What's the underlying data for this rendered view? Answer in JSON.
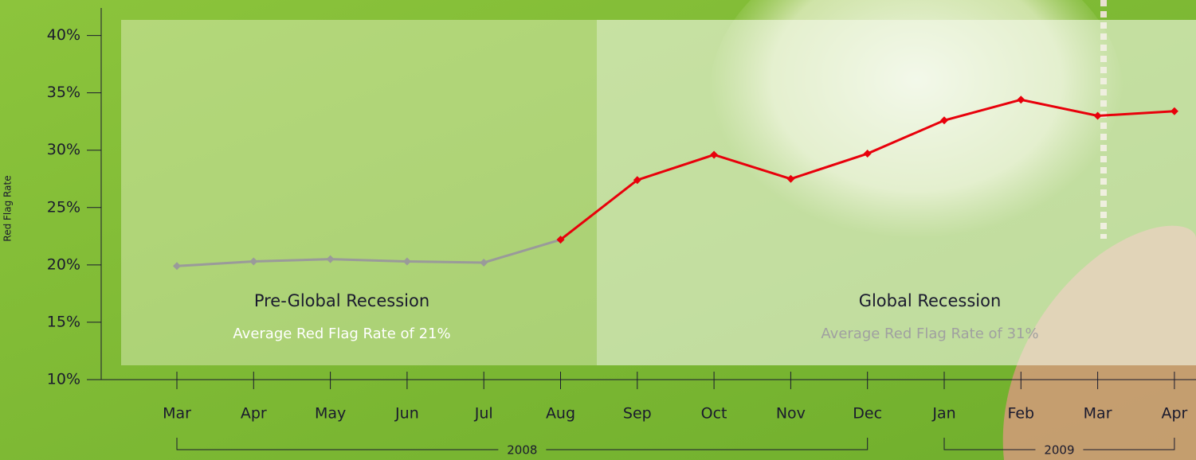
{
  "chart_data": {
    "type": "line",
    "y_label": "Red Flag Rate",
    "categories": [
      "Mar",
      "Apr",
      "May",
      "Jun",
      "Jul",
      "Aug",
      "Sep",
      "Oct",
      "Nov",
      "Dec",
      "Jan",
      "Feb",
      "Mar",
      "Apr"
    ],
    "series": [
      {
        "color": "#9a9a9a",
        "values": [
          19.9,
          20.3,
          20.5,
          20.3,
          20.2,
          22.2,
          null,
          null,
          null,
          null,
          null,
          null,
          null,
          null
        ]
      },
      {
        "color": "#e8000b",
        "values": [
          null,
          null,
          null,
          null,
          null,
          22.2,
          27.4,
          29.6,
          27.5,
          29.7,
          32.6,
          34.4,
          33.0,
          33.4
        ]
      }
    ],
    "ylim": [
      10,
      42.4
    ],
    "yticks": [
      {
        "value": 10,
        "label": "10%"
      },
      {
        "value": 15,
        "label": "15%"
      },
      {
        "value": 20,
        "label": "20%"
      },
      {
        "value": 25,
        "label": "25%"
      },
      {
        "value": 30,
        "label": "30%"
      },
      {
        "value": 35,
        "label": "35%"
      },
      {
        "value": 40,
        "label": "40%"
      }
    ],
    "periods": [
      {
        "title": "Pre-Global Recession",
        "note": "Average Red Flag Rate of 21%"
      },
      {
        "title": "Global Recession",
        "note": "Average Red Flag Rate of 31%"
      }
    ],
    "year_groups": [
      "2008",
      "2009"
    ]
  }
}
